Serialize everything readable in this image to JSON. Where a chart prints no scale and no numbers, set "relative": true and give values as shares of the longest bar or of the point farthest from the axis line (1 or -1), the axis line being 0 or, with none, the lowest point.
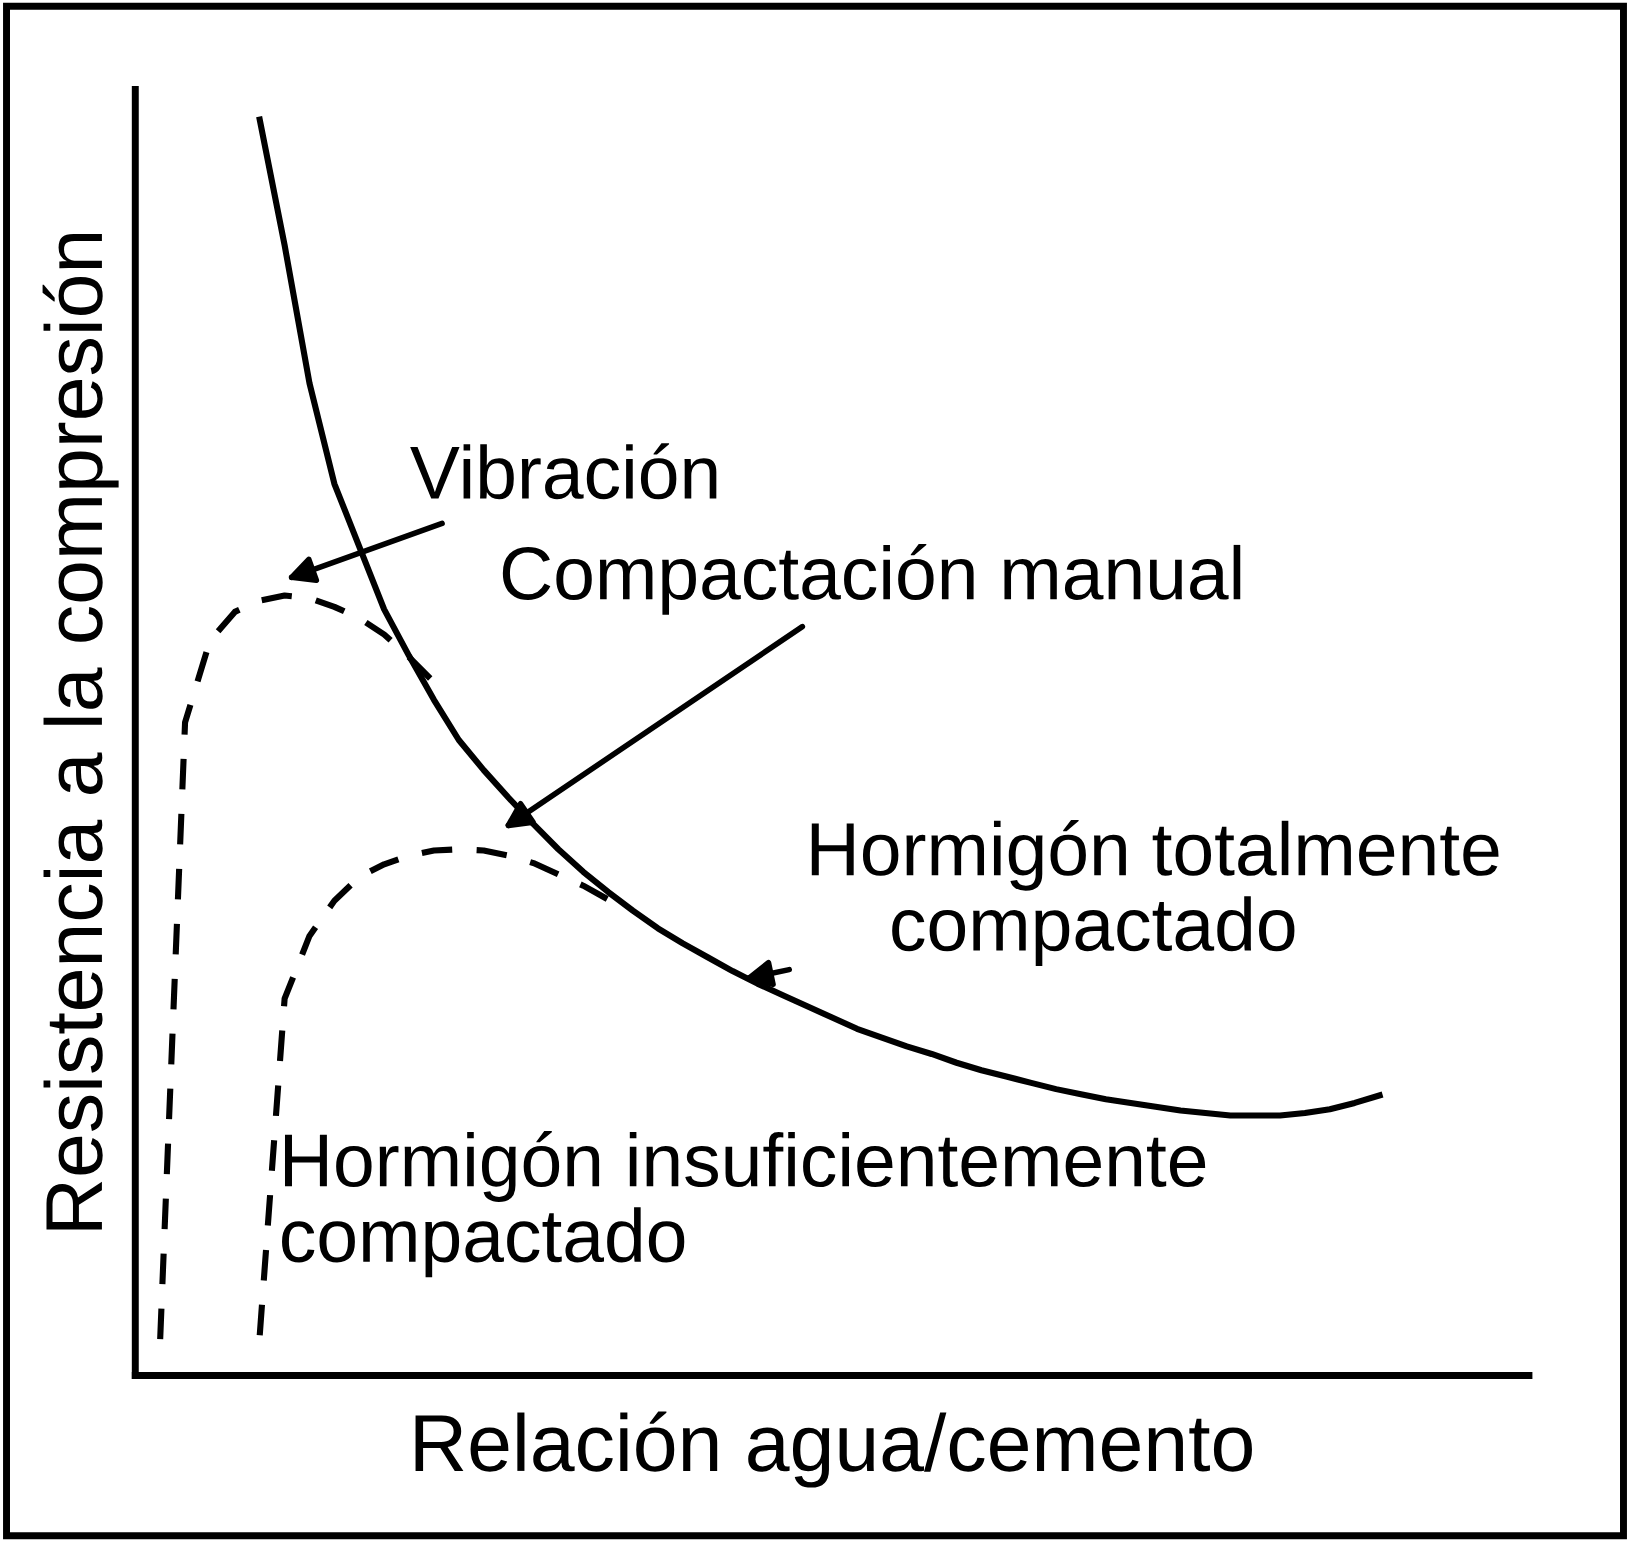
{
  "chart_data": {
    "type": "line",
    "relative": true,
    "xlabel": "Relación agua/cemento",
    "ylabel": "Resistencia a la compresión",
    "marker": "none",
    "categories": [
      null,
      null,
      null,
      null,
      null,
      null,
      null,
      null,
      null,
      null,
      null,
      null,
      null,
      null,
      null,
      null,
      null,
      null,
      null,
      null,
      null,
      null,
      null,
      null,
      null,
      null,
      null,
      null,
      null,
      null,
      null,
      null,
      null,
      null,
      null,
      null,
      null,
      null,
      null,
      null,
      null,
      null,
      null,
      null,
      null,
      null,
      null,
      null,
      null,
      null,
      null
    ],
    "series": [
      {
        "color": "#000000",
        "line_style": "solid",
        "values": [
          null,
          null,
          null,
          null,
          null,
          1.0,
          0.9,
          0.79,
          0.71,
          0.66,
          0.61,
          0.573,
          0.538,
          0.506,
          0.482,
          0.46,
          0.439,
          0.419,
          0.401,
          0.385,
          0.37,
          0.356,
          0.344,
          0.333,
          0.322,
          0.312,
          0.303,
          0.294,
          0.285,
          0.276,
          0.269,
          0.262,
          0.256,
          0.249,
          0.243,
          0.238,
          0.233,
          0.228,
          0.224,
          0.22,
          0.217,
          0.214,
          0.211,
          0.209,
          0.207,
          0.207,
          0.207,
          0.209,
          0.212,
          0.217,
          0.223
        ]
      },
      {
        "color": "#000000",
        "line_style": "dashed",
        "values": [
          null,
          0.029,
          0.52,
          0.585,
          0.608,
          0.617,
          0.621,
          0.619,
          0.612,
          0.603,
          0.59,
          0.572,
          0.552,
          null,
          null,
          null,
          null,
          null,
          null,
          null,
          null,
          null,
          null,
          null,
          null,
          null,
          null,
          null,
          null,
          null,
          null,
          null,
          null,
          null,
          null,
          null,
          null,
          null,
          null,
          null,
          null,
          null,
          null,
          null,
          null,
          null,
          null,
          null,
          null,
          null,
          null
        ]
      },
      {
        "color": "#000000",
        "line_style": "dashed",
        "values": [
          null,
          null,
          null,
          null,
          null,
          0.032,
          0.3,
          0.35,
          0.378,
          0.397,
          0.407,
          0.414,
          0.418,
          0.419,
          0.418,
          0.414,
          0.408,
          0.399,
          0.39,
          0.379,
          null,
          null,
          null,
          null,
          null,
          null,
          null,
          null,
          null,
          null,
          null,
          null,
          null,
          null,
          null,
          null,
          null,
          null,
          null,
          null,
          null,
          null,
          null,
          null,
          null,
          null,
          null,
          null,
          null,
          null,
          null
        ]
      }
    ],
    "annotations": [
      "Vibración",
      "Compactación manual",
      "Hormigón totalmente\n    compactado",
      "Hormigón insuficientemente\ncompactado"
    ]
  }
}
